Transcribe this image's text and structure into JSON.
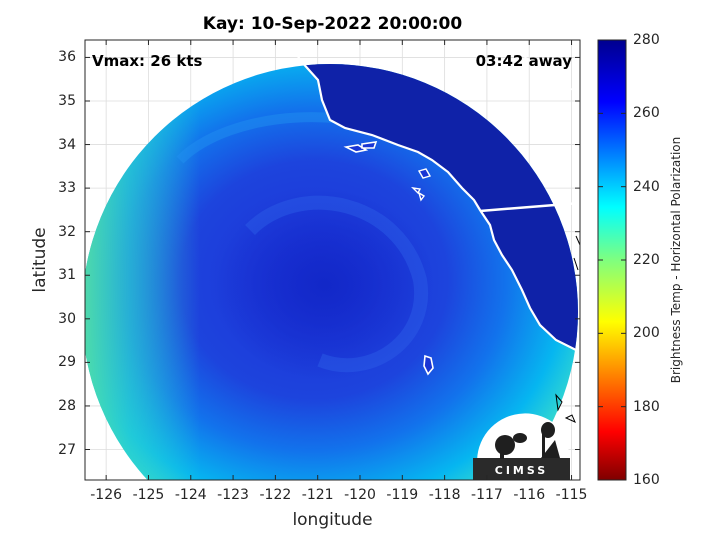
{
  "title": "Kay: 10-Sep-2022 20:00:00",
  "annotation_left": "Vmax: 26 kts",
  "annotation_right": "03:42 away",
  "axes": {
    "xlabel": "longitude",
    "ylabel": "latitude",
    "xlim": [
      -126.5,
      -114.8
    ],
    "ylim": [
      26.3,
      36.4
    ],
    "xticks": [
      -126,
      -125,
      -124,
      -123,
      -122,
      -121,
      -120,
      -119,
      -118,
      -117,
      -116,
      -115
    ],
    "yticks": [
      27,
      28,
      29,
      30,
      31,
      32,
      33,
      34,
      35,
      36
    ],
    "grid": true
  },
  "colorbar": {
    "label": "Brightness Temp - Horizontal Polarization",
    "min": 160,
    "max": 280,
    "ticks": [
      160,
      180,
      200,
      220,
      240,
      260,
      280
    ],
    "colormap": "jet"
  },
  "chart_data": {
    "type": "heatmap",
    "title": "Kay: 10-Sep-2022 20:00:00",
    "xlabel": "longitude",
    "ylabel": "latitude",
    "xlim": [
      -126.5,
      -114.8
    ],
    "ylim": [
      26.3,
      36.4
    ],
    "storm_center": {
      "lon": -120.6,
      "lat": 31.5
    },
    "swath_center": {
      "lon": -120.5,
      "lat": 31.3
    },
    "value_range": [
      160,
      280
    ],
    "colors": {
      "cold_low": "#7f0000",
      "mid": "#ffff00",
      "warm_high": "#00008f",
      "land": "#0a1f9c",
      "ocean_core": "#1a35d4",
      "ocean_edge": "#00c8e6",
      "coast": "#ffffff"
    }
  },
  "logo": {
    "text": "CIMSS",
    "name": "CIMSS logo"
  }
}
